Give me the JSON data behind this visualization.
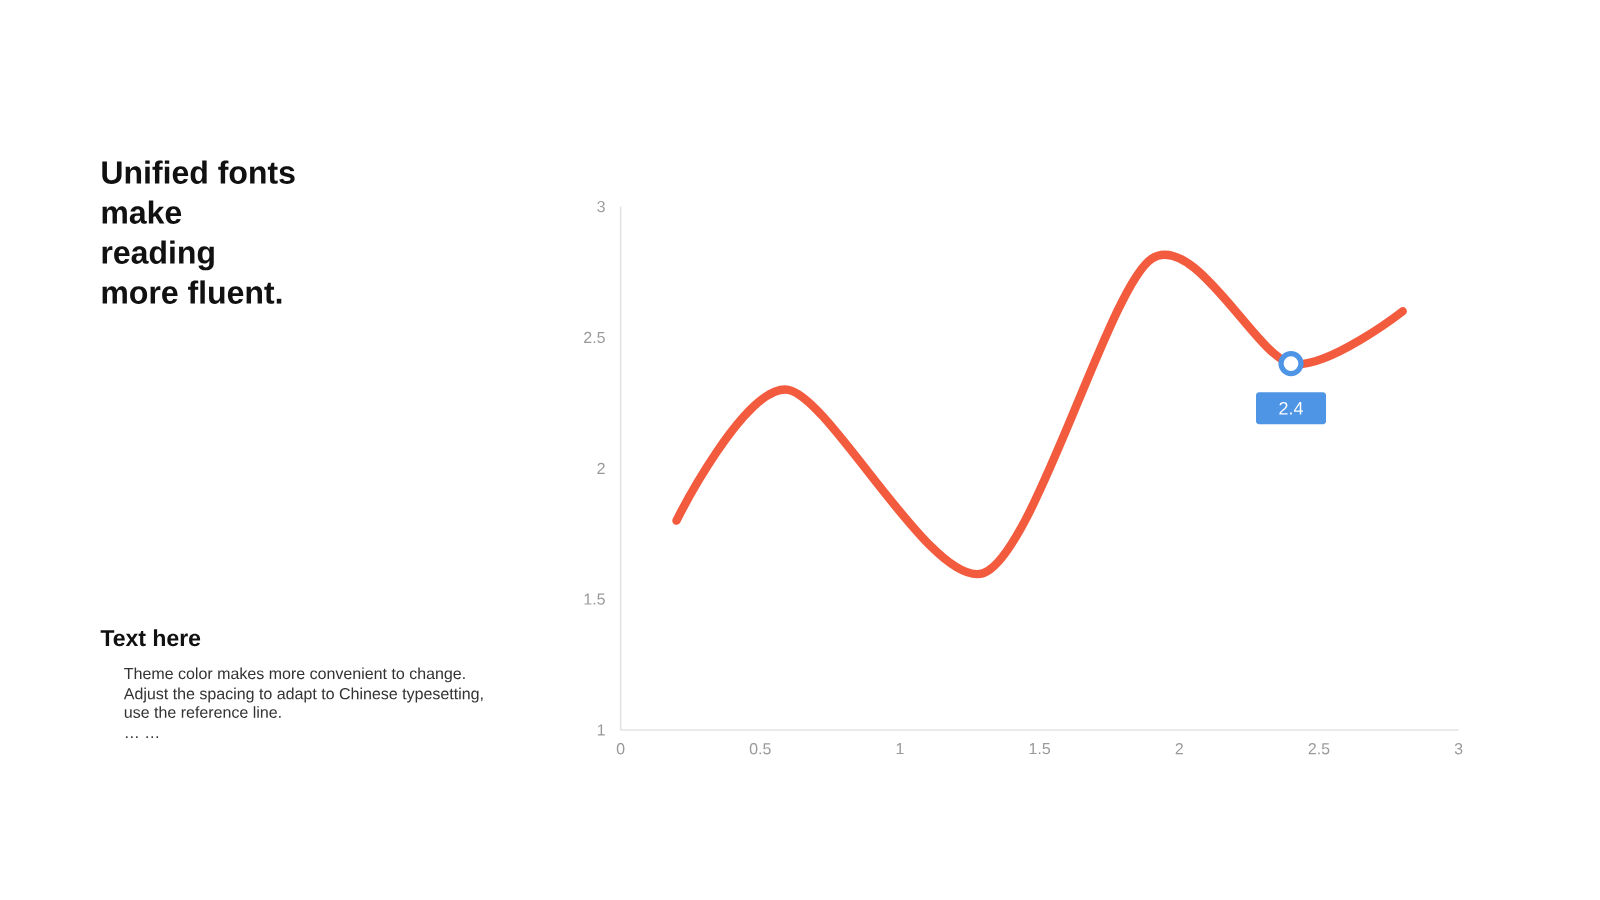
{
  "chart_data": {
    "type": "line",
    "title": "Unified fonts\nmake\nreading\nmore fluent.",
    "subtitle": "Text here",
    "annotations": [
      "Theme color makes more convenient to change.",
      "Adjust the spacing to adapt to Chinese typesetting, use the reference line.",
      "… …"
    ],
    "xlim": [
      0,
      3
    ],
    "ylim": [
      1,
      3
    ],
    "xticks": [
      0,
      0.5,
      1,
      1.5,
      2,
      2.5,
      3
    ],
    "yticks": [
      1,
      1.5,
      2,
      2.5,
      3
    ],
    "series": [
      {
        "color": "#f35b3e",
        "marker": "none",
        "x": [
          0.2,
          0.6,
          1.3,
          1.9,
          2.4,
          2.8
        ],
        "values": [
          1.8,
          2.3,
          1.6,
          2.8,
          2.4,
          2.6
        ]
      },
      {
        "type": "scatter",
        "color": "#4f95e5",
        "marker": "circle",
        "x": [
          2.4
        ],
        "values": [
          2.4
        ],
        "value_labels": [
          "2.4"
        ]
      }
    ]
  }
}
